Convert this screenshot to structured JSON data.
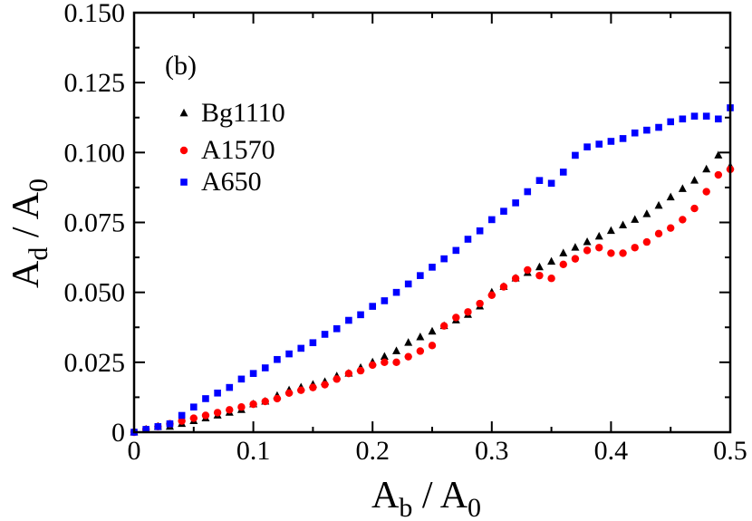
{
  "chart_data": {
    "type": "scatter",
    "panel_label": "(b)",
    "xlabel": {
      "main": "A",
      "sub": "b",
      "sep": " / ",
      "main2": "A",
      "sub2": "0"
    },
    "ylabel": {
      "main": "A",
      "sub": "d",
      "sep": " / ",
      "main2": "A",
      "sub2": "0"
    },
    "xlim": [
      0,
      0.5
    ],
    "ylim": [
      0,
      0.15
    ],
    "x_ticks": [
      0,
      0.1,
      0.2,
      0.3,
      0.4,
      0.5
    ],
    "x_tick_labels": [
      "0",
      "0.1",
      "0.2",
      "0.3",
      "0.4",
      "0.5"
    ],
    "y_ticks": [
      0,
      0.025,
      0.05,
      0.075,
      0.1,
      0.125,
      0.15
    ],
    "y_tick_labels": [
      "0",
      "0.025",
      "0.050",
      "0.075",
      "0.100",
      "0.125",
      "0.150"
    ],
    "grid": false,
    "legend_position": "upper-left",
    "series": [
      {
        "name": "Bg1110",
        "marker": "triangle",
        "color": "#000000",
        "x": [
          0.0,
          0.01,
          0.02,
          0.03,
          0.04,
          0.05,
          0.06,
          0.07,
          0.08,
          0.09,
          0.1,
          0.11,
          0.12,
          0.13,
          0.14,
          0.15,
          0.16,
          0.17,
          0.18,
          0.19,
          0.2,
          0.21,
          0.22,
          0.23,
          0.24,
          0.25,
          0.26,
          0.27,
          0.28,
          0.29,
          0.3,
          0.31,
          0.32,
          0.33,
          0.34,
          0.35,
          0.36,
          0.37,
          0.38,
          0.39,
          0.4,
          0.41,
          0.42,
          0.43,
          0.44,
          0.45,
          0.46,
          0.47,
          0.48,
          0.49,
          0.5
        ],
        "y": [
          0.0,
          0.001,
          0.002,
          0.002,
          0.003,
          0.004,
          0.005,
          0.006,
          0.007,
          0.008,
          0.01,
          0.011,
          0.013,
          0.015,
          0.016,
          0.017,
          0.018,
          0.02,
          0.021,
          0.023,
          0.025,
          0.027,
          0.029,
          0.032,
          0.034,
          0.036,
          0.038,
          0.04,
          0.042,
          0.045,
          0.05,
          0.052,
          0.055,
          0.057,
          0.059,
          0.061,
          0.064,
          0.066,
          0.068,
          0.07,
          0.072,
          0.074,
          0.076,
          0.078,
          0.081,
          0.084,
          0.087,
          0.09,
          0.094,
          0.099,
          0.095
        ]
      },
      {
        "name": "A1570",
        "marker": "circle",
        "color": "#ff0000",
        "x": [
          0.0,
          0.01,
          0.02,
          0.03,
          0.04,
          0.05,
          0.06,
          0.07,
          0.08,
          0.09,
          0.1,
          0.11,
          0.12,
          0.13,
          0.14,
          0.15,
          0.16,
          0.17,
          0.18,
          0.19,
          0.2,
          0.21,
          0.22,
          0.23,
          0.24,
          0.25,
          0.26,
          0.27,
          0.28,
          0.29,
          0.3,
          0.31,
          0.32,
          0.33,
          0.34,
          0.35,
          0.36,
          0.37,
          0.38,
          0.39,
          0.4,
          0.41,
          0.42,
          0.43,
          0.44,
          0.45,
          0.46,
          0.47,
          0.48,
          0.49,
          0.5
        ],
        "y": [
          0.0,
          0.001,
          0.002,
          0.003,
          0.004,
          0.005,
          0.006,
          0.007,
          0.008,
          0.009,
          0.01,
          0.011,
          0.012,
          0.014,
          0.015,
          0.016,
          0.017,
          0.019,
          0.021,
          0.022,
          0.024,
          0.025,
          0.025,
          0.027,
          0.029,
          0.031,
          0.038,
          0.041,
          0.043,
          0.046,
          0.049,
          0.052,
          0.055,
          0.058,
          0.056,
          0.055,
          0.06,
          0.062,
          0.065,
          0.066,
          0.064,
          0.064,
          0.066,
          0.068,
          0.071,
          0.073,
          0.076,
          0.08,
          0.086,
          0.092,
          0.094
        ]
      },
      {
        "name": "A650",
        "marker": "square",
        "color": "#0000ff",
        "x": [
          0.0,
          0.01,
          0.02,
          0.03,
          0.04,
          0.05,
          0.06,
          0.07,
          0.08,
          0.09,
          0.1,
          0.11,
          0.12,
          0.13,
          0.14,
          0.15,
          0.16,
          0.17,
          0.18,
          0.19,
          0.2,
          0.21,
          0.22,
          0.23,
          0.24,
          0.25,
          0.26,
          0.27,
          0.28,
          0.29,
          0.3,
          0.31,
          0.32,
          0.33,
          0.34,
          0.35,
          0.36,
          0.37,
          0.38,
          0.39,
          0.4,
          0.41,
          0.42,
          0.43,
          0.44,
          0.45,
          0.46,
          0.47,
          0.48,
          0.49,
          0.5
        ],
        "y": [
          0.0,
          0.001,
          0.002,
          0.003,
          0.006,
          0.009,
          0.012,
          0.014,
          0.016,
          0.019,
          0.021,
          0.023,
          0.026,
          0.028,
          0.03,
          0.032,
          0.035,
          0.037,
          0.04,
          0.042,
          0.045,
          0.047,
          0.05,
          0.053,
          0.056,
          0.059,
          0.062,
          0.065,
          0.069,
          0.072,
          0.076,
          0.079,
          0.082,
          0.086,
          0.09,
          0.089,
          0.093,
          0.099,
          0.102,
          0.103,
          0.104,
          0.105,
          0.107,
          0.108,
          0.109,
          0.111,
          0.112,
          0.113,
          0.113,
          0.112,
          0.116
        ]
      }
    ]
  }
}
